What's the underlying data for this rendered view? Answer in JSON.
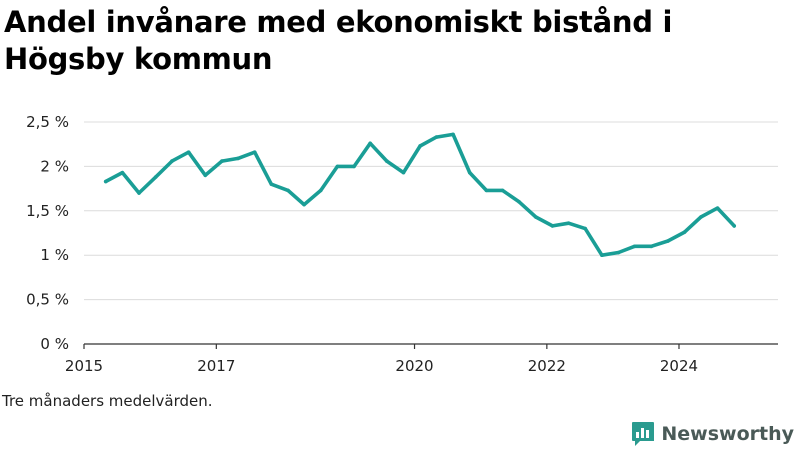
{
  "chart_data": {
    "type": "line",
    "title": "Andel invånare med ekonomiskt bistånd i Högsby kommun",
    "xlabel": "",
    "ylabel": "",
    "y_unit": "%",
    "ylim": [
      0,
      2.5
    ],
    "yticks": [
      {
        "value": 0,
        "label": "0 %"
      },
      {
        "value": 0.5,
        "label": "0,5 %"
      },
      {
        "value": 1,
        "label": "1 %"
      },
      {
        "value": 1.5,
        "label": "1,5 %"
      },
      {
        "value": 2,
        "label": "2 %"
      },
      {
        "value": 2.5,
        "label": "2,5 %"
      }
    ],
    "xlim": [
      "2015-01-01",
      "2025-07-01"
    ],
    "xticks": [
      {
        "value": "2015-01-01",
        "label": "2015"
      },
      {
        "value": "2017-01-01",
        "label": "2017"
      },
      {
        "value": "2020-01-01",
        "label": "2020"
      },
      {
        "value": "2022-01-01",
        "label": "2022"
      },
      {
        "value": "2024-01-01",
        "label": "2024"
      }
    ],
    "grid": true,
    "line_color": "#1a9e96",
    "series": [
      {
        "name": "",
        "x": [
          "2015-05",
          "2015-08",
          "2015-11",
          "2016-02",
          "2016-05",
          "2016-08",
          "2016-11",
          "2017-02",
          "2017-05",
          "2017-08",
          "2017-11",
          "2018-02",
          "2018-05",
          "2018-08",
          "2018-11",
          "2019-02",
          "2019-05",
          "2019-08",
          "2019-11",
          "2020-02",
          "2020-05",
          "2020-08",
          "2020-11",
          "2021-02",
          "2021-05",
          "2021-08",
          "2021-11",
          "2022-02",
          "2022-05",
          "2022-08",
          "2022-11",
          "2023-02",
          "2023-05",
          "2023-08",
          "2023-11",
          "2024-02",
          "2024-05",
          "2024-08",
          "2024-11"
        ],
        "values": [
          1.83,
          1.93,
          1.7,
          1.88,
          2.06,
          2.16,
          1.9,
          2.06,
          2.09,
          2.16,
          1.8,
          1.73,
          1.57,
          1.73,
          2.0,
          2.0,
          2.26,
          2.06,
          1.93,
          2.23,
          2.33,
          2.36,
          1.93,
          1.73,
          1.73,
          1.6,
          1.43,
          1.33,
          1.36,
          1.3,
          1.0,
          1.03,
          1.1,
          1.1,
          1.16,
          1.26,
          1.43,
          1.53,
          1.33
        ]
      }
    ]
  },
  "footer": {
    "note": "Tre månaders medelvärden.",
    "brand": "Newsworthy",
    "brand_icon": "newsworthy-logo-icon",
    "brand_color": "#2a9b8f"
  }
}
